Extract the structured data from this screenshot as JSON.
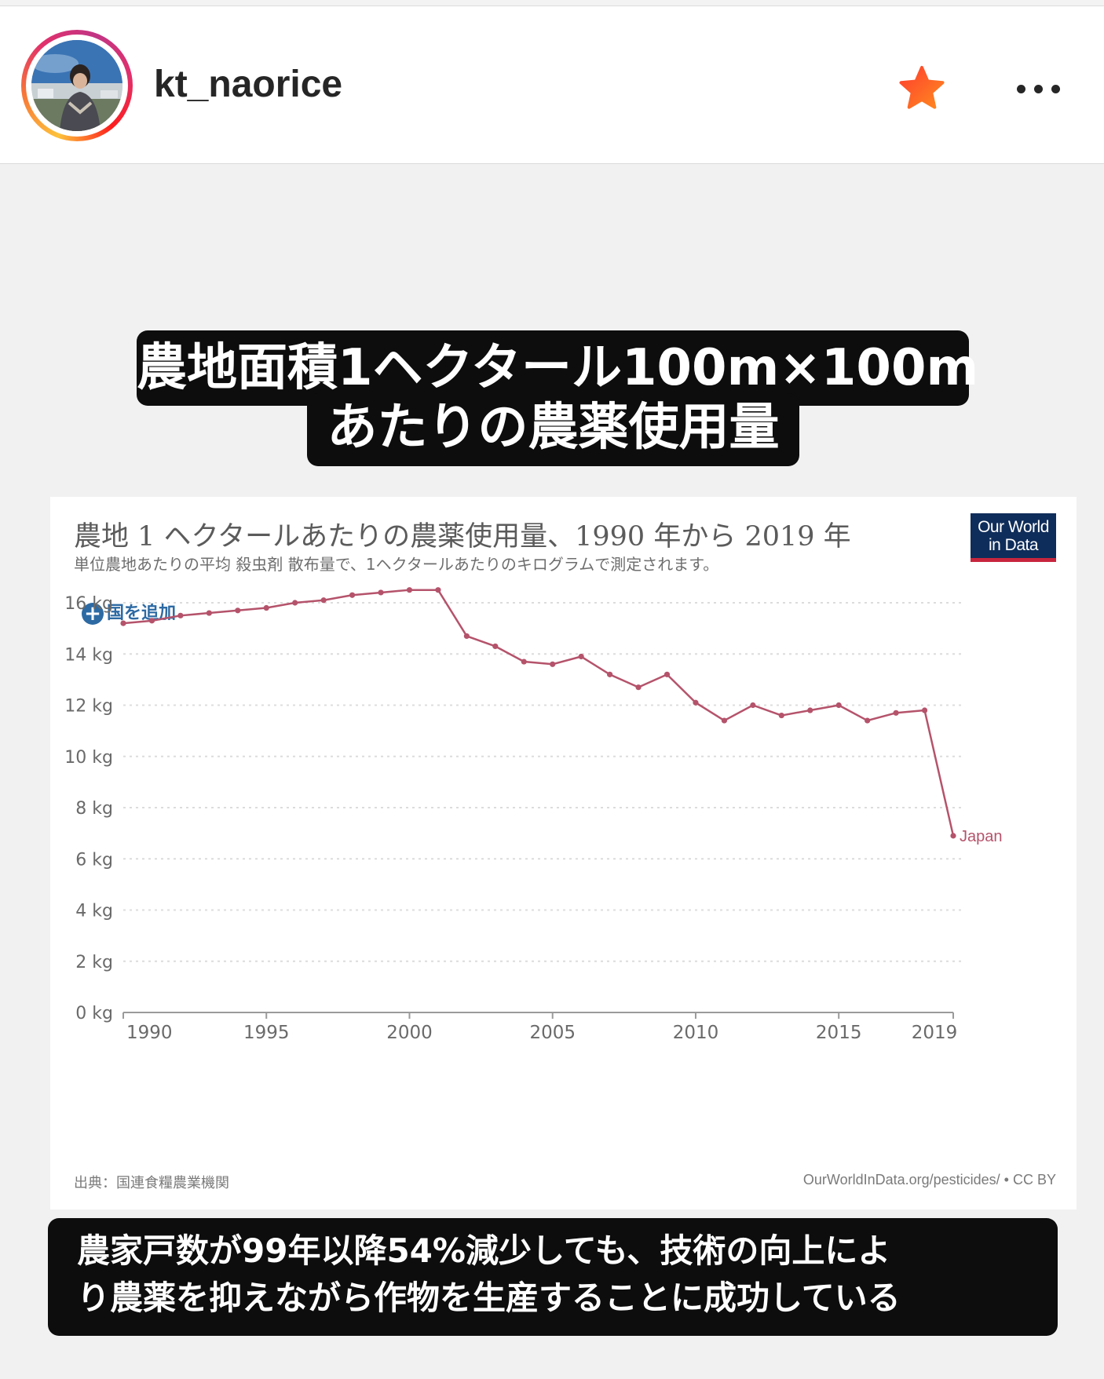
{
  "header": {
    "username": "kt_naorice"
  },
  "post": {
    "title_line1": "農地面積1ヘクタール100m×100m",
    "title_line2": "あたりの農薬使用量",
    "caption_line1": "農家戸数が99年以降54%減少しても、技術の向上によ",
    "caption_line2": "り農薬を抑えながら作物を生産することに成功している",
    "chart": {
      "title": "農地 1 ヘクタールあたりの農薬使用量、1990 年から 2019 年",
      "subtitle": "単位農地あたりの平均 殺虫剤 散布量で、1ヘクタールあたりのキログラムで測定されます。",
      "add_country": "国を追加",
      "logo_line1": "Our World",
      "logo_line2": "in Data",
      "source": "出典：国連食糧農業機関",
      "credit": "OurWorldInData.org/pesticides/ • CC BY"
    }
  },
  "colors": {
    "line": "#b5536b",
    "grid": "#dcdcdc",
    "axis_text": "#6a6a6a",
    "label_text": "#b5536b"
  },
  "chart_data": {
    "type": "line",
    "title": "農地 1 ヘクタールあたりの農薬使用量、1990 年から 2019 年",
    "subtitle": "単位農地あたりの平均 殺虫剤 散布量で、1ヘクタールあたりのキログラムで測定されます。",
    "xlabel": "",
    "ylabel": "",
    "x": [
      1990,
      1991,
      1992,
      1993,
      1994,
      1995,
      1996,
      1997,
      1998,
      1999,
      2000,
      2001,
      2002,
      2003,
      2004,
      2005,
      2006,
      2007,
      2008,
      2009,
      2010,
      2011,
      2012,
      2013,
      2014,
      2015,
      2016,
      2017,
      2018,
      2019
    ],
    "series": [
      {
        "name": "Japan",
        "values": [
          15.2,
          15.3,
          15.5,
          15.6,
          15.7,
          15.8,
          16.0,
          16.1,
          16.3,
          16.4,
          16.5,
          16.5,
          14.7,
          14.3,
          13.7,
          13.6,
          13.9,
          13.2,
          12.7,
          13.2,
          12.1,
          11.4,
          12.0,
          11.6,
          11.8,
          12.0,
          11.4,
          11.7,
          11.8,
          6.9
        ]
      }
    ],
    "yticks": [
      "0 kg",
      "2 kg",
      "4 kg",
      "6 kg",
      "8 kg",
      "10 kg",
      "12 kg",
      "14 kg",
      "16 kg"
    ],
    "ytick_values": [
      0,
      2,
      4,
      6,
      8,
      10,
      12,
      14,
      16
    ],
    "xticks": [
      "1990",
      "1995",
      "2000",
      "2005",
      "2010",
      "2015",
      "2019"
    ],
    "xtick_values": [
      1990,
      1995,
      2000,
      2005,
      2010,
      2015,
      2019
    ],
    "ylim": [
      0,
      17
    ],
    "xlim": [
      1990,
      2019
    ],
    "grid": "horizontal dotted",
    "legend": "inline label at line end"
  }
}
